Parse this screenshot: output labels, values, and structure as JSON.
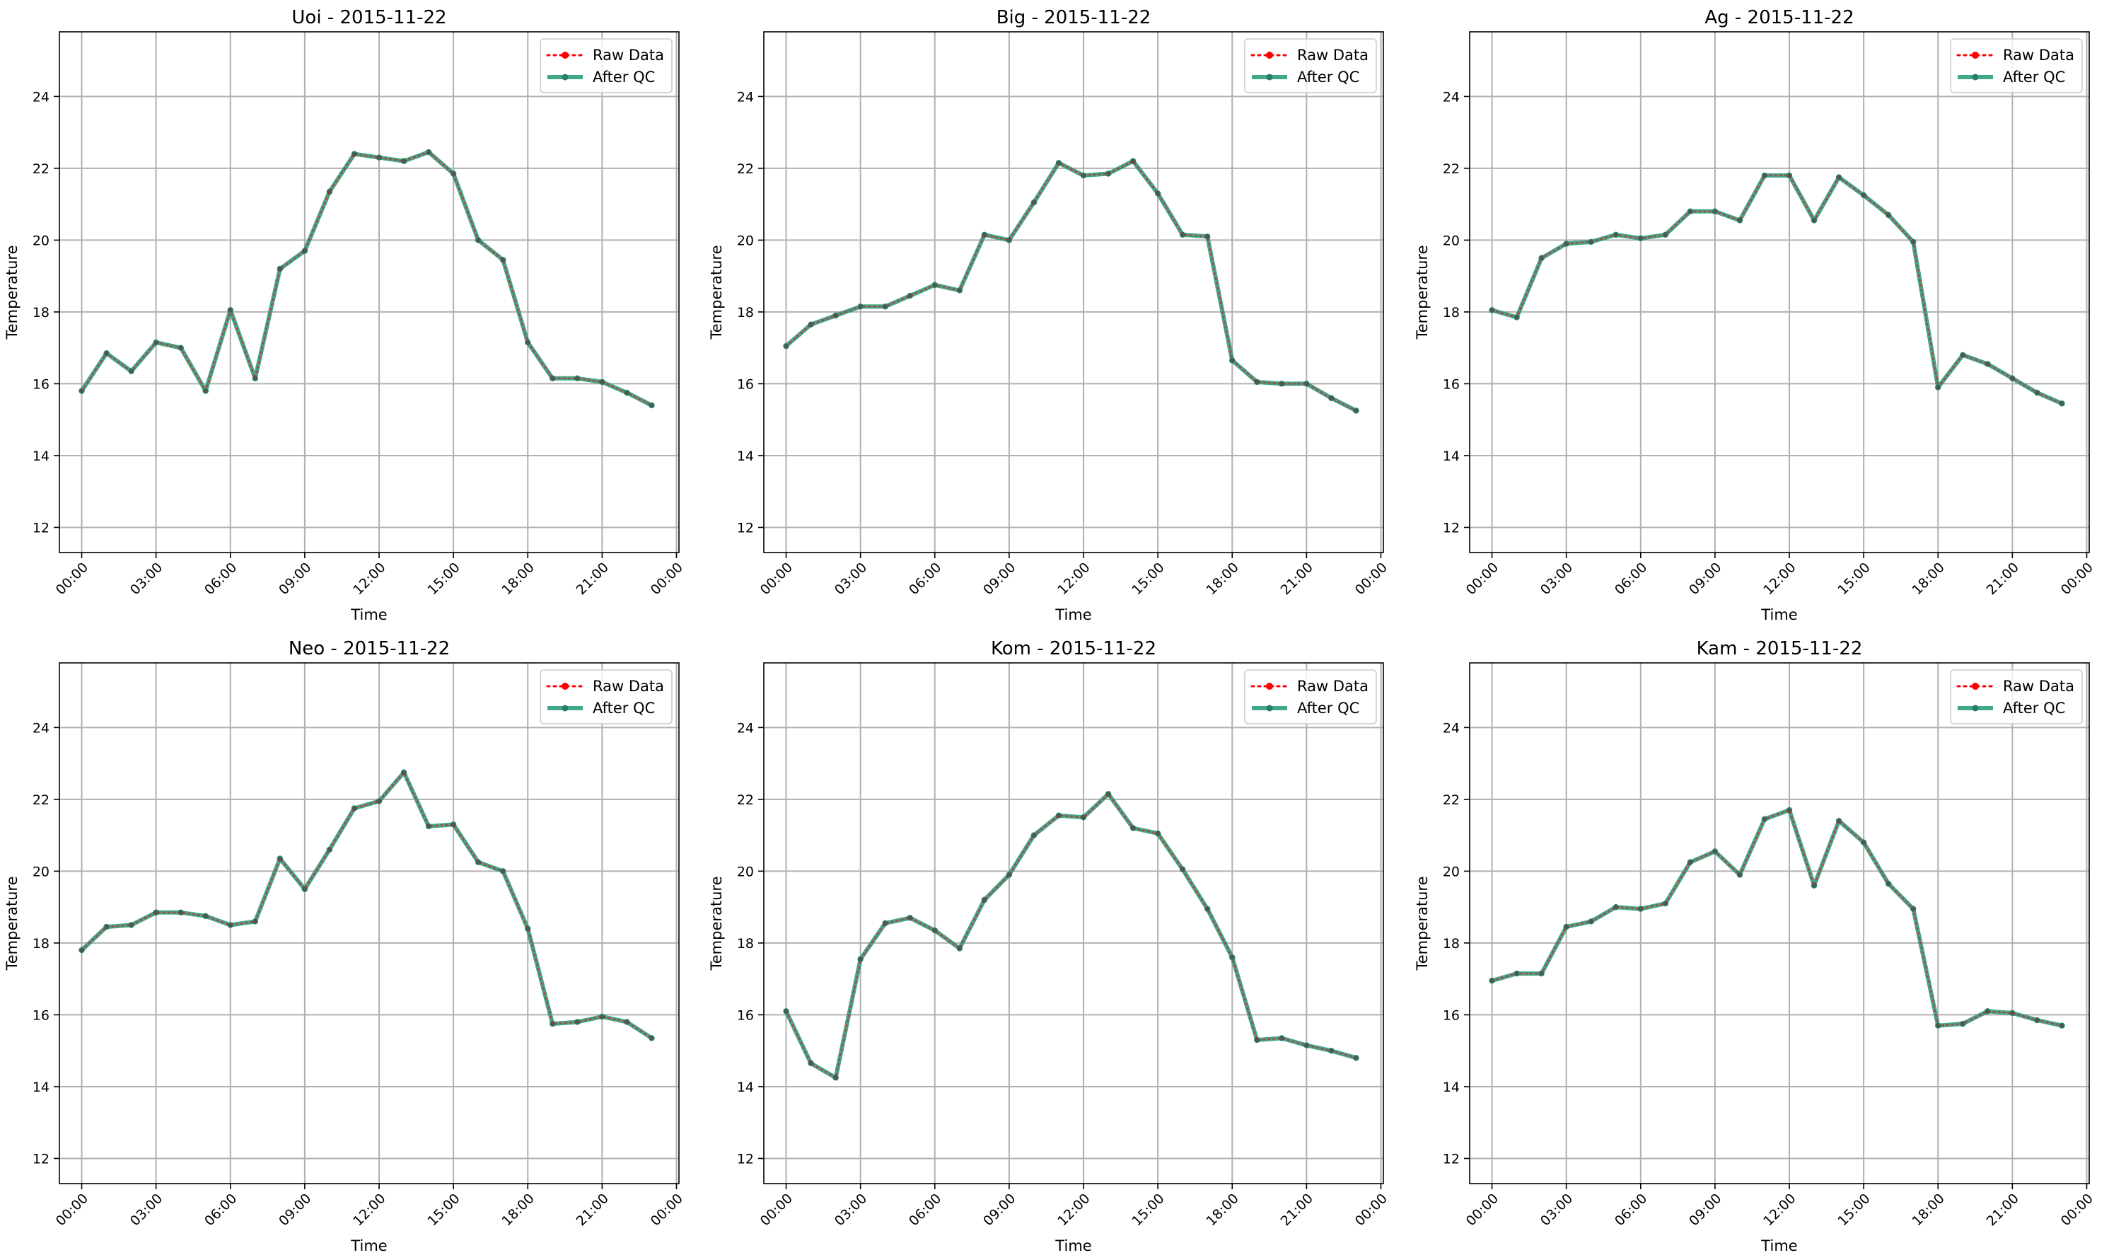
{
  "chart_data": [
    {
      "type": "line",
      "title": "Uoi - 2015-11-22",
      "xlabel": "Time",
      "ylabel": "Temperature",
      "ylim": [
        11.3,
        25.8
      ],
      "yticks": [
        12,
        14,
        16,
        18,
        20,
        22,
        24
      ],
      "xlim": [
        -0.9,
        24.1
      ],
      "xticks": [
        0,
        3,
        6,
        9,
        12,
        15,
        18,
        21,
        24
      ],
      "xtick_labels": [
        "00:00",
        "03:00",
        "06:00",
        "09:00",
        "12:00",
        "15:00",
        "18:00",
        "21:00",
        "00:00"
      ],
      "grid": true,
      "legend": "top-right",
      "x": [
        0,
        1,
        2,
        3,
        4,
        5,
        6,
        7,
        8,
        9,
        10,
        11,
        12,
        13,
        14,
        15,
        16,
        17,
        18,
        19,
        20,
        21,
        22,
        23
      ],
      "series": [
        {
          "name": "Raw Data",
          "color": "#ff0000",
          "style": "dotted",
          "values": [
            15.8,
            16.85,
            16.35,
            17.15,
            17.0,
            15.8,
            18.05,
            16.15,
            19.2,
            19.7,
            21.35,
            22.4,
            22.3,
            22.2,
            22.45,
            21.85,
            20.0,
            19.45,
            17.15,
            16.15,
            16.15,
            16.05,
            15.75,
            15.4
          ]
        },
        {
          "name": "After QC",
          "color": "#2e9e7f",
          "style": "solid",
          "values": [
            15.8,
            16.85,
            16.35,
            17.15,
            17.0,
            15.8,
            18.05,
            16.15,
            19.2,
            19.7,
            21.35,
            22.4,
            22.3,
            22.2,
            22.45,
            21.85,
            20.0,
            19.45,
            17.15,
            16.15,
            16.15,
            16.05,
            15.75,
            15.4
          ]
        }
      ]
    },
    {
      "type": "line",
      "title": "Big - 2015-11-22",
      "xlabel": "Time",
      "ylabel": "Temperature",
      "ylim": [
        11.3,
        25.8
      ],
      "yticks": [
        12,
        14,
        16,
        18,
        20,
        22,
        24
      ],
      "xlim": [
        -0.9,
        24.1
      ],
      "xticks": [
        0,
        3,
        6,
        9,
        12,
        15,
        18,
        21,
        24
      ],
      "xtick_labels": [
        "00:00",
        "03:00",
        "06:00",
        "09:00",
        "12:00",
        "15:00",
        "18:00",
        "21:00",
        "00:00"
      ],
      "grid": true,
      "legend": "top-right",
      "x": [
        0,
        1,
        2,
        3,
        4,
        5,
        6,
        7,
        8,
        9,
        10,
        11,
        12,
        13,
        14,
        15,
        16,
        17,
        18,
        19,
        20,
        21,
        22,
        23
      ],
      "series": [
        {
          "name": "Raw Data",
          "color": "#ff0000",
          "style": "dotted",
          "values": [
            17.05,
            17.65,
            17.9,
            18.15,
            18.15,
            18.45,
            18.75,
            18.6,
            20.15,
            20.0,
            21.05,
            22.15,
            21.8,
            21.85,
            22.2,
            21.3,
            20.15,
            20.1,
            16.65,
            16.05,
            16.0,
            16.0,
            15.6,
            15.25
          ]
        },
        {
          "name": "After QC",
          "color": "#2e9e7f",
          "style": "solid",
          "values": [
            17.05,
            17.65,
            17.9,
            18.15,
            18.15,
            18.45,
            18.75,
            18.6,
            20.15,
            20.0,
            21.05,
            22.15,
            21.8,
            21.85,
            22.2,
            21.3,
            20.15,
            20.1,
            16.65,
            16.05,
            16.0,
            16.0,
            15.6,
            15.25
          ]
        }
      ]
    },
    {
      "type": "line",
      "title": "Ag - 2015-11-22",
      "xlabel": "Time",
      "ylabel": "Temperature",
      "ylim": [
        11.3,
        25.8
      ],
      "yticks": [
        12,
        14,
        16,
        18,
        20,
        22,
        24
      ],
      "xlim": [
        -0.9,
        24.1
      ],
      "xticks": [
        0,
        3,
        6,
        9,
        12,
        15,
        18,
        21,
        24
      ],
      "xtick_labels": [
        "00:00",
        "03:00",
        "06:00",
        "09:00",
        "12:00",
        "15:00",
        "18:00",
        "21:00",
        "00:00"
      ],
      "grid": true,
      "legend": "top-right",
      "x": [
        0,
        1,
        2,
        3,
        4,
        5,
        6,
        7,
        8,
        9,
        10,
        11,
        12,
        13,
        14,
        15,
        16,
        17,
        18,
        19,
        20,
        21,
        22,
        23
      ],
      "series": [
        {
          "name": "Raw Data",
          "color": "#ff0000",
          "style": "dotted",
          "values": [
            18.05,
            17.85,
            19.5,
            19.9,
            19.95,
            20.15,
            20.05,
            20.15,
            20.8,
            20.8,
            20.55,
            21.8,
            21.8,
            20.55,
            21.75,
            21.25,
            20.7,
            19.95,
            15.9,
            16.8,
            16.55,
            16.15,
            15.75,
            15.45
          ]
        },
        {
          "name": "After QC",
          "color": "#2e9e7f",
          "style": "solid",
          "values": [
            18.05,
            17.85,
            19.5,
            19.9,
            19.95,
            20.15,
            20.05,
            20.15,
            20.8,
            20.8,
            20.55,
            21.8,
            21.8,
            20.55,
            21.75,
            21.25,
            20.7,
            19.95,
            15.9,
            16.8,
            16.55,
            16.15,
            15.75,
            15.45
          ]
        }
      ]
    },
    {
      "type": "line",
      "title": "Neo - 2015-11-22",
      "xlabel": "Time",
      "ylabel": "Temperature",
      "ylim": [
        11.3,
        25.8
      ],
      "yticks": [
        12,
        14,
        16,
        18,
        20,
        22,
        24
      ],
      "xlim": [
        -0.9,
        24.1
      ],
      "xticks": [
        0,
        3,
        6,
        9,
        12,
        15,
        18,
        21,
        24
      ],
      "xtick_labels": [
        "00:00",
        "03:00",
        "06:00",
        "09:00",
        "12:00",
        "15:00",
        "18:00",
        "21:00",
        "00:00"
      ],
      "grid": true,
      "legend": "top-right",
      "x": [
        0,
        1,
        2,
        3,
        4,
        5,
        6,
        7,
        8,
        9,
        10,
        11,
        12,
        13,
        14,
        15,
        16,
        17,
        18,
        19,
        20,
        21,
        22,
        23
      ],
      "series": [
        {
          "name": "Raw Data",
          "color": "#ff0000",
          "style": "dotted",
          "values": [
            17.8,
            18.45,
            18.5,
            18.85,
            18.85,
            18.75,
            18.5,
            18.6,
            20.35,
            19.5,
            20.6,
            21.75,
            21.95,
            22.75,
            21.25,
            21.3,
            20.25,
            20.0,
            18.4,
            15.75,
            15.8,
            15.95,
            15.8,
            15.35
          ]
        },
        {
          "name": "After QC",
          "color": "#2e9e7f",
          "style": "solid",
          "values": [
            17.8,
            18.45,
            18.5,
            18.85,
            18.85,
            18.75,
            18.5,
            18.6,
            20.35,
            19.5,
            20.6,
            21.75,
            21.95,
            22.75,
            21.25,
            21.3,
            20.25,
            20.0,
            18.4,
            15.75,
            15.8,
            15.95,
            15.8,
            15.35
          ]
        }
      ]
    },
    {
      "type": "line",
      "title": "Kom - 2015-11-22",
      "xlabel": "Time",
      "ylabel": "Temperature",
      "ylim": [
        11.3,
        25.8
      ],
      "yticks": [
        12,
        14,
        16,
        18,
        20,
        22,
        24
      ],
      "xlim": [
        -0.9,
        24.1
      ],
      "xticks": [
        0,
        3,
        6,
        9,
        12,
        15,
        18,
        21,
        24
      ],
      "xtick_labels": [
        "00:00",
        "03:00",
        "06:00",
        "09:00",
        "12:00",
        "15:00",
        "18:00",
        "21:00",
        "00:00"
      ],
      "grid": true,
      "legend": "top-right",
      "x": [
        0,
        1,
        2,
        3,
        4,
        5,
        6,
        7,
        8,
        9,
        10,
        11,
        12,
        13,
        14,
        15,
        16,
        17,
        18,
        19,
        20,
        21,
        22,
        23
      ],
      "series": [
        {
          "name": "Raw Data",
          "color": "#ff0000",
          "style": "dotted",
          "values": [
            16.1,
            14.65,
            14.25,
            17.55,
            18.55,
            18.7,
            18.35,
            17.85,
            19.2,
            19.9,
            21.0,
            21.55,
            21.5,
            22.15,
            21.2,
            21.05,
            20.05,
            18.95,
            17.6,
            15.3,
            15.35,
            15.15,
            15.0,
            14.8
          ]
        },
        {
          "name": "After QC",
          "color": "#2e9e7f",
          "style": "solid",
          "values": [
            16.1,
            14.65,
            14.25,
            17.55,
            18.55,
            18.7,
            18.35,
            17.85,
            19.2,
            19.9,
            21.0,
            21.55,
            21.5,
            22.15,
            21.2,
            21.05,
            20.05,
            18.95,
            17.6,
            15.3,
            15.35,
            15.15,
            15.0,
            14.8
          ]
        }
      ]
    },
    {
      "type": "line",
      "title": "Kam - 2015-11-22",
      "xlabel": "Time",
      "ylabel": "Temperature",
      "ylim": [
        11.3,
        25.8
      ],
      "yticks": [
        12,
        14,
        16,
        18,
        20,
        22,
        24
      ],
      "xlim": [
        -0.9,
        24.1
      ],
      "xticks": [
        0,
        3,
        6,
        9,
        12,
        15,
        18,
        21,
        24
      ],
      "xtick_labels": [
        "00:00",
        "03:00",
        "06:00",
        "09:00",
        "12:00",
        "15:00",
        "18:00",
        "21:00",
        "00:00"
      ],
      "grid": true,
      "legend": "top-right",
      "x": [
        0,
        1,
        2,
        3,
        4,
        5,
        6,
        7,
        8,
        9,
        10,
        11,
        12,
        13,
        14,
        15,
        16,
        17,
        18,
        19,
        20,
        21,
        22,
        23
      ],
      "series": [
        {
          "name": "Raw Data",
          "color": "#ff0000",
          "style": "dotted",
          "values": [
            16.95,
            17.15,
            17.15,
            18.45,
            18.6,
            19.0,
            18.95,
            19.1,
            20.25,
            20.55,
            19.9,
            21.45,
            21.7,
            19.6,
            21.4,
            20.8,
            19.65,
            18.95,
            15.7,
            15.75,
            16.1,
            16.05,
            15.85,
            15.7
          ]
        },
        {
          "name": "After QC",
          "color": "#2e9e7f",
          "style": "solid",
          "values": [
            16.95,
            17.15,
            17.15,
            18.45,
            18.6,
            19.0,
            18.95,
            19.1,
            20.25,
            20.55,
            19.9,
            21.45,
            21.7,
            19.6,
            21.4,
            20.8,
            19.65,
            18.95,
            15.7,
            15.75,
            16.1,
            16.05,
            15.85,
            15.7
          ]
        }
      ]
    }
  ]
}
